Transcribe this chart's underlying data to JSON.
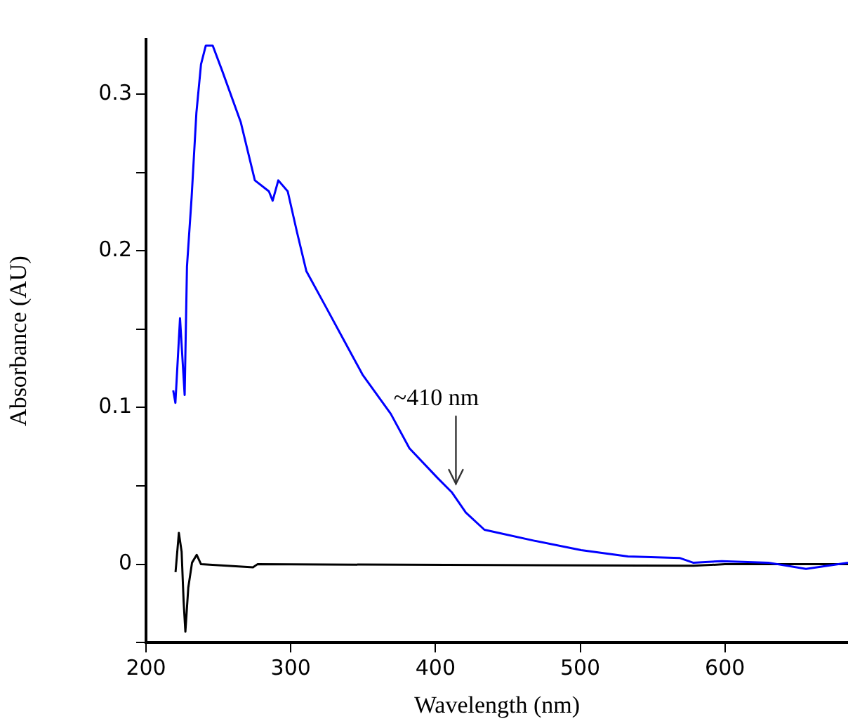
{
  "chart_data": {
    "type": "line",
    "xlabel": "Wavelength (nm)",
    "ylabel": "Absorbance (AU)",
    "xlim": [
      200,
      685
    ],
    "ylim": [
      -0.05,
      0.335
    ],
    "xticks": [
      200,
      300,
      400,
      500,
      600
    ],
    "yticks": [
      {
        "value": -0.05,
        "label": null
      },
      {
        "value": 0,
        "label": "0"
      },
      {
        "value": 0.05,
        "label": null
      },
      0.1,
      {
        "value": 0.15,
        "label": null
      },
      0.2,
      {
        "value": 0.25,
        "label": null
      },
      0.3
    ],
    "grid": false,
    "legend": false,
    "marker": "none",
    "line_style": "solid",
    "annotations": [
      {
        "text": "~410 nm",
        "x": 411.2,
        "y": 0.046
      }
    ],
    "series": [
      {
        "color": "#0000ff",
        "x": [
          218.8,
          220.3,
          223.5,
          226.7,
          228.3,
          231.5,
          234.8,
          238,
          241.3,
          246.1,
          252.6,
          265.5,
          275.2,
          284.9,
          287.5,
          291.4,
          297.9,
          304.3,
          310.8,
          323.8,
          336.7,
          349.6,
          369.1,
          382,
          401.5,
          411.2,
          420.9,
          433.8,
          468.2,
          500.6,
          533,
          568.6,
          578,
          597.8,
          630,
          656,
          685
        ],
        "values": [
          0.111,
          0.103,
          0.157,
          0.108,
          0.19,
          0.234,
          0.288,
          0.319,
          0.331,
          0.331,
          0.315,
          0.282,
          0.245,
          0.238,
          0.232,
          0.245,
          0.238,
          0.212,
          0.187,
          0.165,
          0.143,
          0.121,
          0.096,
          0.074,
          0.055,
          0.046,
          0.033,
          0.022,
          0.015,
          0.009,
          0.005,
          0.004,
          0.001,
          0.002,
          0.001,
          -0.003,
          0.001
        ]
      },
      {
        "color": "#000000",
        "x": [
          220.4,
          222.7,
          224.6,
          226,
          227.2,
          229.2,
          231.8,
          235,
          238,
          273.9,
          277,
          578.3,
          600,
          685
        ],
        "values": [
          -0.005,
          0.02,
          0.008,
          -0.024,
          -0.043,
          -0.015,
          0.001,
          0.006,
          0,
          -0.002,
          0,
          -0.001,
          0,
          0
        ]
      }
    ]
  }
}
